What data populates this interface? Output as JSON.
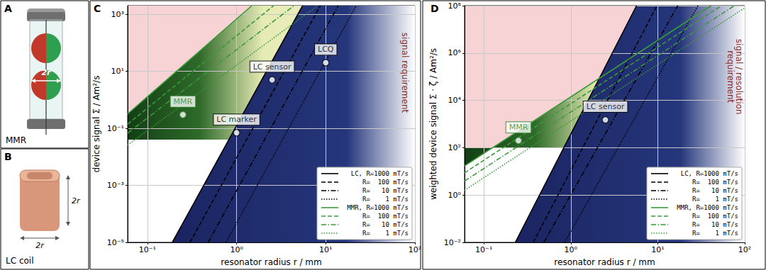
{
  "figure": {
    "panels": [
      {
        "letter": "A",
        "caption": "MMR",
        "dimension_label": "2r"
      },
      {
        "letter": "B",
        "caption": "LC coil",
        "dimension_labels": [
          "2r",
          "2r"
        ]
      }
    ]
  },
  "chart_data": [
    {
      "panel_label": "C",
      "type": "line",
      "log": true,
      "grid": true,
      "legend": "lower right",
      "xlabel": "resonator radius r / mm",
      "ylabel": "device signal Σ / Am²/s",
      "xlim": [
        0.06,
        100
      ],
      "ylim": [
        1e-05,
        2000
      ],
      "xticks": [
        {
          "value": 0.1,
          "label": "10⁻¹"
        },
        {
          "value": 1,
          "label": "10⁰"
        },
        {
          "value": 10,
          "label": "10¹"
        },
        {
          "value": 100,
          "label": "10²"
        }
      ],
      "yticks": [
        {
          "value": 1e-05,
          "label": "10⁻⁵"
        },
        {
          "value": 0.001,
          "label": "10⁻³"
        },
        {
          "value": 0.1,
          "label": "10⁻¹"
        },
        {
          "value": 10,
          "label": "10¹"
        },
        {
          "value": 1000,
          "label": "10³"
        }
      ],
      "requirement": {
        "value": 0.04,
        "label": "signal requirement"
      },
      "series": [
        {
          "name": "LC, R=1000 mT/s",
          "color": "#000000",
          "line_style": "solid",
          "x": [
            0.19,
            5.5
          ],
          "values": [
            1e-05,
            2000
          ]
        },
        {
          "name": "R=  100 mT/s",
          "color": "#000000",
          "line_style": "dashed",
          "x": [
            0.3,
            8.7
          ],
          "values": [
            1e-05,
            2000
          ]
        },
        {
          "name": "R=   10 mT/s",
          "color": "#000000",
          "line_style": "dashdot",
          "x": [
            0.48,
            13.8
          ],
          "values": [
            1e-05,
            2000
          ]
        },
        {
          "name": "R=    1 mT/s",
          "color": "#000000",
          "line_style": "dotted",
          "x": [
            0.76,
            21.9
          ],
          "values": [
            1e-05,
            2000
          ]
        },
        {
          "name": "MMR, R=1000 mT/s",
          "color": "#3a9a3a",
          "line_style": "solid",
          "x": [
            0.06,
            1.48
          ],
          "values": [
            0.32,
            2000
          ]
        },
        {
          "name": "R=  100 mT/s",
          "color": "#3a9a3a",
          "line_style": "dashed",
          "x": [
            0.06,
            2.6
          ],
          "values": [
            0.14,
            2000
          ]
        },
        {
          "name": "R=   10 mT/s",
          "color": "#3a9a3a",
          "line_style": "dashdot",
          "x": [
            0.06,
            4.4
          ],
          "values": [
            0.068,
            2000
          ]
        },
        {
          "name": "R=    1 mT/s",
          "color": "#3a9a3a",
          "line_style": "dotted",
          "x": [
            0.06,
            8.1
          ],
          "values": [
            0.026,
            2000
          ]
        }
      ],
      "points": [
        {
          "label": "MMR",
          "x": 0.25,
          "y": 0.3,
          "color": "#2e8b2e"
        },
        {
          "label": "LC marker",
          "x": 1.0,
          "y": 0.07,
          "color": "#000000"
        },
        {
          "label": "LC sensor",
          "x": 2.5,
          "y": 5,
          "color": "#000000"
        },
        {
          "label": "LCQ",
          "x": 10,
          "y": 20,
          "color": "#000000"
        }
      ]
    },
    {
      "panel_label": "D",
      "type": "line",
      "log": true,
      "grid": true,
      "legend": "lower right",
      "xlabel": "resonator radius r / mm",
      "ylabel": "weighted device signal Σ · ζ / Am²/s",
      "xlim": [
        0.06,
        100
      ],
      "ylim": [
        0.01,
        100000000
      ],
      "xticks": [
        {
          "value": 0.1,
          "label": "10⁻¹"
        },
        {
          "value": 1,
          "label": "10⁰"
        },
        {
          "value": 10,
          "label": "10¹"
        },
        {
          "value": 100,
          "label": "10²"
        }
      ],
      "yticks": [
        {
          "value": 0.01,
          "label": "10⁻²"
        },
        {
          "value": 1,
          "label": "10⁰"
        },
        {
          "value": 100,
          "label": "10²"
        },
        {
          "value": 10000,
          "label": "10⁴"
        },
        {
          "value": 1000000,
          "label": "10⁶"
        },
        {
          "value": 100000000,
          "label": "10⁸"
        }
      ],
      "requirement": {
        "value": 100,
        "label": "signal / resolution\nrequirement"
      },
      "series": [
        {
          "name": "LC, R=1000 mT/s",
          "color": "#000000",
          "line_style": "solid",
          "x": [
            0.23,
            5.7
          ],
          "values": [
            0.01,
            100000000
          ]
        },
        {
          "name": "R=  100 mT/s",
          "color": "#000000",
          "line_style": "dashed",
          "x": [
            0.37,
            9.8
          ],
          "values": [
            0.01,
            100000000
          ]
        },
        {
          "name": "R=   10 mT/s",
          "color": "#000000",
          "line_style": "dashdot",
          "x": [
            0.49,
            17
          ],
          "values": [
            0.01,
            100000000
          ]
        },
        {
          "name": "R=    1 mT/s",
          "color": "#000000",
          "line_style": "dotted",
          "x": [
            0.85,
            29
          ],
          "values": [
            0.01,
            100000000
          ]
        },
        {
          "name": "MMR, R=1000 mT/s",
          "color": "#3a9a3a",
          "line_style": "solid",
          "x": [
            0.06,
            41
          ],
          "values": [
            17,
            100000000
          ]
        },
        {
          "name": "R=  100 mT/s",
          "color": "#3a9a3a",
          "line_style": "dashed",
          "x": [
            0.06,
            54
          ],
          "values": [
            8.7,
            100000000
          ]
        },
        {
          "name": "R=   10 mT/s",
          "color": "#3a9a3a",
          "line_style": "dashdot",
          "x": [
            0.06,
            76
          ],
          "values": [
            3.9,
            100000000
          ]
        },
        {
          "name": "R=    1 mT/s",
          "color": "#3a9a3a",
          "line_style": "dotted",
          "x": [
            0.06,
            100
          ],
          "values": [
            1.6,
            81000000
          ]
        }
      ],
      "points": [
        {
          "label": "MMR",
          "x": 0.25,
          "y": 200,
          "color": "#2e8b2e"
        },
        {
          "label": "LC sensor",
          "x": 2.5,
          "y": 1500,
          "color": "#000000"
        }
      ]
    }
  ]
}
